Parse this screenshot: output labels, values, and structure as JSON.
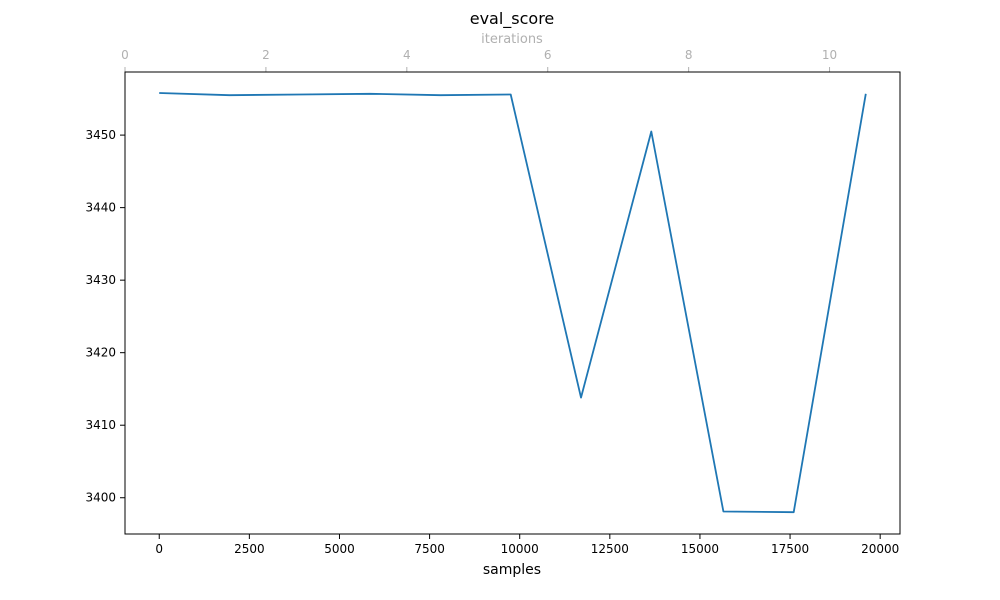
{
  "chart_data": {
    "type": "line",
    "title": "eval_score",
    "xlabel": "samples",
    "ylabel": "",
    "top_axis_label": "iterations",
    "x": [
      0,
      1950,
      3900,
      5850,
      7800,
      9750,
      11700,
      13650,
      15650,
      17600,
      19600
    ],
    "top_x": [
      0.5,
      1.5,
      2.5,
      3.5,
      4.5,
      5.5,
      6.5,
      7.5,
      8.5,
      9.5,
      10.5
    ],
    "series": [
      {
        "values": [
          3455.8,
          3455.5,
          3455.6,
          3455.7,
          3455.5,
          3455.6,
          3413.8,
          3450.5,
          3398.1,
          3398.0,
          3455.7
        ],
        "color": "#1f77b4"
      }
    ],
    "xlim": [
      -950,
      20550
    ],
    "ylim": [
      3395,
      3458.7
    ],
    "top_xlim": [
      0,
      11
    ],
    "x_ticks": [
      "0",
      "2500",
      "5000",
      "7500",
      "10000",
      "12500",
      "15000",
      "17500",
      "20000"
    ],
    "y_ticks": [
      "3400",
      "3410",
      "3420",
      "3430",
      "3440",
      "3450"
    ],
    "top_x_ticks": [
      "0",
      "2",
      "4",
      "6",
      "8",
      "10"
    ],
    "grid": false,
    "axis_color": "#000000",
    "top_axis_color": "#b0b0b0"
  }
}
